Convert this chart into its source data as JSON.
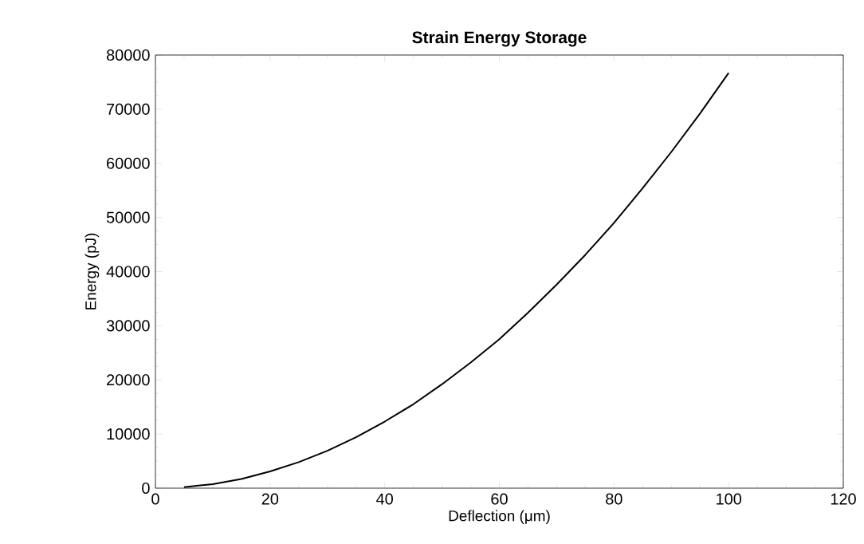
{
  "chart_data": {
    "type": "line",
    "title": "Strain Energy Storage",
    "xlabel": "Deflection (μm)",
    "ylabel": "Energy (pJ)",
    "x": [
      5,
      10,
      15,
      20,
      25,
      30,
      35,
      40,
      45,
      50,
      55,
      60,
      65,
      70,
      75,
      80,
      85,
      90,
      95,
      100
    ],
    "values": [
      200,
      750,
      1700,
      3100,
      4800,
      6900,
      9400,
      12300,
      15500,
      19200,
      23200,
      27500,
      32400,
      37600,
      43100,
      49000,
      55400,
      62100,
      69200,
      76700
    ],
    "color": "#000000",
    "xlim": [
      0,
      120
    ],
    "ylim": [
      0,
      80000
    ],
    "xticks": [
      0,
      20,
      40,
      60,
      80,
      100,
      120
    ],
    "yticks": [
      0,
      10000,
      20000,
      30000,
      40000,
      50000,
      60000,
      70000,
      80000
    ]
  }
}
